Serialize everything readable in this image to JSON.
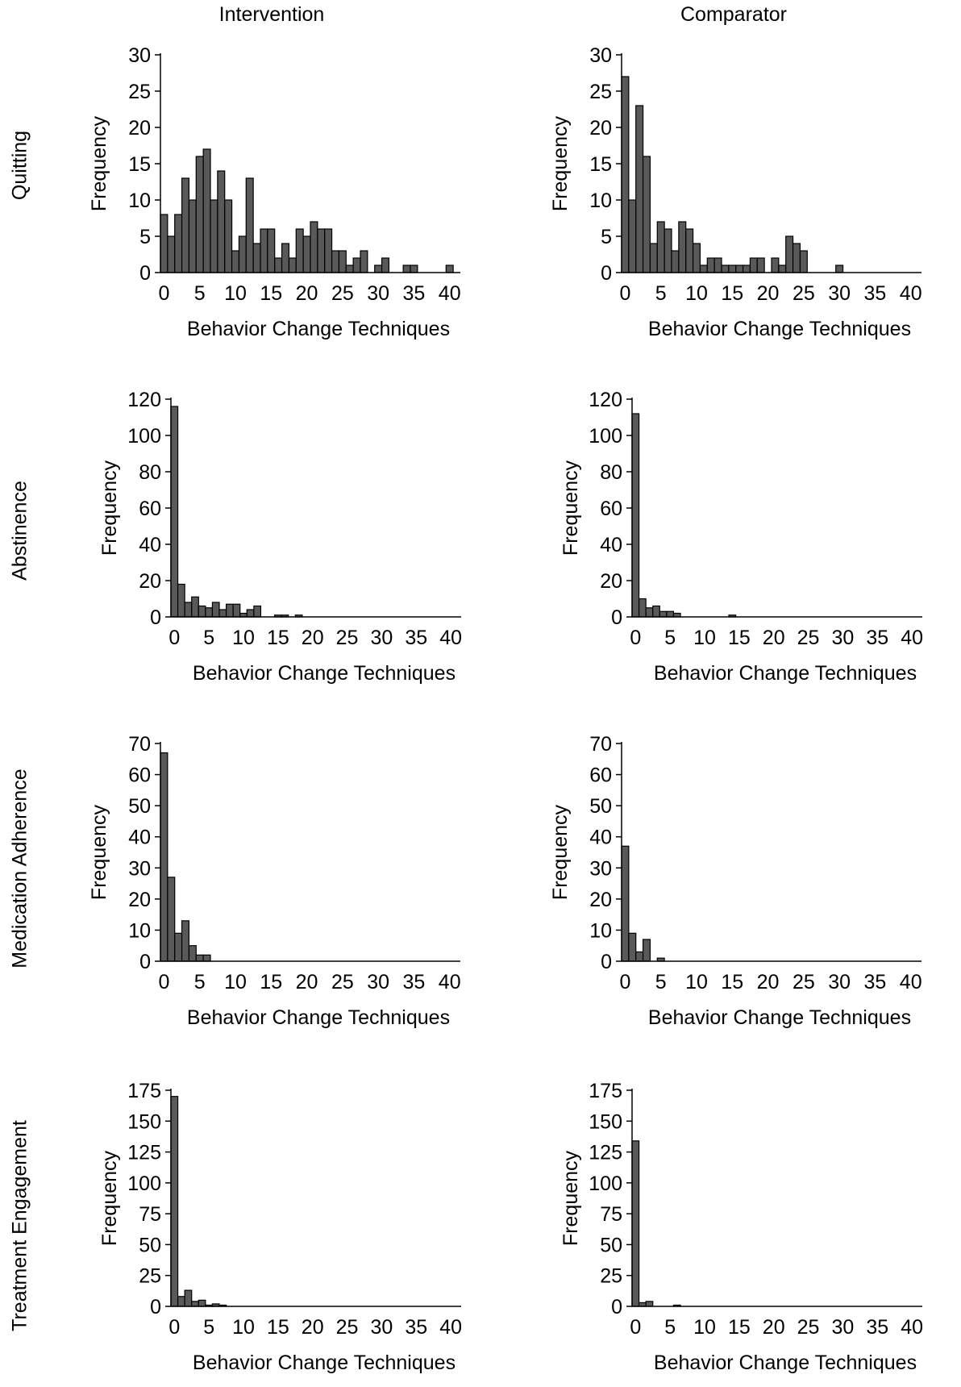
{
  "column_headers": [
    "Intervention",
    "Comparator"
  ],
  "row_labels": [
    "Quitting",
    "Abstinence",
    "Medication Adherence",
    "Treatment Engagement"
  ],
  "colors": {
    "bar_fill": "#595959",
    "bar_stroke": "#000000",
    "axis": "#000000"
  },
  "chart_data": [
    {
      "type": "bar",
      "row": "Quitting",
      "column": "Intervention",
      "xlabel": "Behavior Change Techniques",
      "ylabel": "Frequency",
      "ylim": [
        0,
        30
      ],
      "yticks": [
        0,
        5,
        10,
        15,
        20,
        25,
        30
      ],
      "xlim": [
        0,
        41
      ],
      "xticks": [
        0,
        5,
        10,
        15,
        20,
        25,
        30,
        35,
        40
      ],
      "x": [
        0,
        1,
        2,
        3,
        4,
        5,
        6,
        7,
        8,
        9,
        10,
        11,
        12,
        13,
        14,
        15,
        16,
        17,
        18,
        19,
        20,
        21,
        22,
        23,
        24,
        25,
        26,
        27,
        28,
        29,
        30,
        31,
        32,
        33,
        34,
        35,
        36,
        37,
        38,
        39,
        40,
        41
      ],
      "values": [
        8,
        5,
        8,
        13,
        10,
        16,
        17,
        10,
        14,
        10,
        3,
        5,
        13,
        4,
        6,
        6,
        2,
        4,
        2,
        6,
        5,
        7,
        6,
        6,
        3,
        3,
        1,
        2,
        3,
        0,
        1,
        2,
        0,
        0,
        1,
        1,
        0,
        0,
        0,
        0,
        1,
        0
      ]
    },
    {
      "type": "bar",
      "row": "Quitting",
      "column": "Comparator",
      "xlabel": "Behavior Change Techniques",
      "ylabel": "Frequency",
      "ylim": [
        0,
        30
      ],
      "yticks": [
        0,
        5,
        10,
        15,
        20,
        25,
        30
      ],
      "xlim": [
        0,
        41
      ],
      "xticks": [
        0,
        5,
        10,
        15,
        20,
        25,
        30,
        35,
        40
      ],
      "x": [
        0,
        1,
        2,
        3,
        4,
        5,
        6,
        7,
        8,
        9,
        10,
        11,
        12,
        13,
        14,
        15,
        16,
        17,
        18,
        19,
        20,
        21,
        22,
        23,
        24,
        25,
        26,
        27,
        28,
        29,
        30,
        31,
        32,
        33,
        34,
        35,
        36,
        37,
        38,
        39,
        40,
        41
      ],
      "values": [
        27,
        10,
        23,
        16,
        4,
        7,
        6,
        3,
        7,
        6,
        4,
        1,
        2,
        2,
        1,
        1,
        1,
        1,
        2,
        2,
        0,
        2,
        1,
        5,
        4,
        3,
        0,
        0,
        0,
        0,
        1,
        0,
        0,
        0,
        0,
        0,
        0,
        0,
        0,
        0,
        0,
        0
      ]
    },
    {
      "type": "bar",
      "row": "Abstinence",
      "column": "Intervention",
      "xlabel": "Behavior Change Techniques",
      "ylabel": "Frequency",
      "ylim": [
        0,
        120
      ],
      "yticks": [
        0,
        20,
        40,
        60,
        80,
        100,
        120
      ],
      "xlim": [
        0,
        41
      ],
      "xticks": [
        0,
        5,
        10,
        15,
        20,
        25,
        30,
        35,
        40
      ],
      "x": [
        0,
        1,
        2,
        3,
        4,
        5,
        6,
        7,
        8,
        9,
        10,
        11,
        12,
        13,
        14,
        15,
        16,
        17,
        18,
        19,
        20,
        21,
        22,
        23,
        24,
        25,
        26,
        27,
        28,
        29,
        30,
        31,
        32,
        33,
        34,
        35,
        36,
        37,
        38,
        39,
        40,
        41
      ],
      "values": [
        116,
        18,
        8,
        11,
        6,
        5,
        8,
        4,
        7,
        7,
        2,
        4,
        6,
        0,
        0,
        1,
        1,
        0,
        1,
        0,
        0,
        0,
        0,
        0,
        0,
        0,
        0,
        0,
        0,
        0,
        0,
        0,
        0,
        0,
        0,
        0,
        0,
        0,
        0,
        0,
        0,
        0
      ]
    },
    {
      "type": "bar",
      "row": "Abstinence",
      "column": "Comparator",
      "xlabel": "Behavior Change Techniques",
      "ylabel": "Frequency",
      "ylim": [
        0,
        120
      ],
      "yticks": [
        0,
        20,
        40,
        60,
        80,
        100,
        120
      ],
      "xlim": [
        0,
        41
      ],
      "xticks": [
        0,
        5,
        10,
        15,
        20,
        25,
        30,
        35,
        40
      ],
      "x": [
        0,
        1,
        2,
        3,
        4,
        5,
        6,
        7,
        8,
        9,
        10,
        11,
        12,
        13,
        14,
        15,
        16,
        17,
        18,
        19,
        20,
        21,
        22,
        23,
        24,
        25,
        26,
        27,
        28,
        29,
        30,
        31,
        32,
        33,
        34,
        35,
        36,
        37,
        38,
        39,
        40,
        41
      ],
      "values": [
        112,
        10,
        5,
        6,
        3,
        3,
        2,
        0,
        0,
        0,
        0,
        0,
        0,
        0,
        1,
        0,
        0,
        0,
        0,
        0,
        0,
        0,
        0,
        0,
        0,
        0,
        0,
        0,
        0,
        0,
        0,
        0,
        0,
        0,
        0,
        0,
        0,
        0,
        0,
        0,
        0,
        0
      ]
    },
    {
      "type": "bar",
      "row": "Medication Adherence",
      "column": "Intervention",
      "xlabel": "Behavior Change Techniques",
      "ylabel": "Frequency",
      "ylim": [
        0,
        70
      ],
      "yticks": [
        0,
        10,
        20,
        30,
        40,
        50,
        60,
        70
      ],
      "xlim": [
        0,
        41
      ],
      "xticks": [
        0,
        5,
        10,
        15,
        20,
        25,
        30,
        35,
        40
      ],
      "x": [
        0,
        1,
        2,
        3,
        4,
        5,
        6,
        7,
        8,
        9,
        10,
        11,
        12,
        13,
        14,
        15,
        16,
        17,
        18,
        19,
        20,
        21,
        22,
        23,
        24,
        25,
        26,
        27,
        28,
        29,
        30,
        31,
        32,
        33,
        34,
        35,
        36,
        37,
        38,
        39,
        40,
        41
      ],
      "values": [
        67,
        27,
        9,
        13,
        5,
        2,
        2,
        0,
        0,
        0,
        0,
        0,
        0,
        0,
        0,
        0,
        0,
        0,
        0,
        0,
        0,
        0,
        0,
        0,
        0,
        0,
        0,
        0,
        0,
        0,
        0,
        0,
        0,
        0,
        0,
        0,
        0,
        0,
        0,
        0,
        0,
        0
      ]
    },
    {
      "type": "bar",
      "row": "Medication Adherence",
      "column": "Comparator",
      "xlabel": "Behavior Change Techniques",
      "ylabel": "Frequency",
      "ylim": [
        0,
        70
      ],
      "yticks": [
        0,
        10,
        20,
        30,
        40,
        50,
        60,
        70
      ],
      "xlim": [
        0,
        41
      ],
      "xticks": [
        0,
        5,
        10,
        15,
        20,
        25,
        30,
        35,
        40
      ],
      "x": [
        0,
        1,
        2,
        3,
        4,
        5,
        6,
        7,
        8,
        9,
        10,
        11,
        12,
        13,
        14,
        15,
        16,
        17,
        18,
        19,
        20,
        21,
        22,
        23,
        24,
        25,
        26,
        27,
        28,
        29,
        30,
        31,
        32,
        33,
        34,
        35,
        36,
        37,
        38,
        39,
        40,
        41
      ],
      "values": [
        37,
        9,
        3,
        7,
        0,
        1,
        0,
        0,
        0,
        0,
        0,
        0,
        0,
        0,
        0,
        0,
        0,
        0,
        0,
        0,
        0,
        0,
        0,
        0,
        0,
        0,
        0,
        0,
        0,
        0,
        0,
        0,
        0,
        0,
        0,
        0,
        0,
        0,
        0,
        0,
        0,
        0
      ]
    },
    {
      "type": "bar",
      "row": "Treatment Engagement",
      "column": "Intervention",
      "xlabel": "Behavior Change Techniques",
      "ylabel": "Frequency",
      "ylim": [
        0,
        175
      ],
      "yticks": [
        0,
        25,
        50,
        75,
        100,
        125,
        150,
        175
      ],
      "xlim": [
        0,
        41
      ],
      "xticks": [
        0,
        5,
        10,
        15,
        20,
        25,
        30,
        35,
        40
      ],
      "x": [
        0,
        1,
        2,
        3,
        4,
        5,
        6,
        7,
        8,
        9,
        10,
        11,
        12,
        13,
        14,
        15,
        16,
        17,
        18,
        19,
        20,
        21,
        22,
        23,
        24,
        25,
        26,
        27,
        28,
        29,
        30,
        31,
        32,
        33,
        34,
        35,
        36,
        37,
        38,
        39,
        40,
        41
      ],
      "values": [
        170,
        8,
        13,
        4,
        5,
        1,
        2,
        1,
        0,
        0,
        0,
        0,
        0,
        0,
        0,
        0,
        0,
        0,
        0,
        0,
        0,
        0,
        0,
        0,
        0,
        0,
        0,
        0,
        0,
        0,
        0,
        0,
        0,
        0,
        0,
        0,
        0,
        0,
        0,
        0,
        0,
        0
      ]
    },
    {
      "type": "bar",
      "row": "Treatment Engagement",
      "column": "Comparator",
      "xlabel": "Behavior Change Techniques",
      "ylabel": "Frequency",
      "ylim": [
        0,
        175
      ],
      "yticks": [
        0,
        25,
        50,
        75,
        100,
        125,
        150,
        175
      ],
      "xlim": [
        0,
        41
      ],
      "xticks": [
        0,
        5,
        10,
        15,
        20,
        25,
        30,
        35,
        40
      ],
      "x": [
        0,
        1,
        2,
        3,
        4,
        5,
        6,
        7,
        8,
        9,
        10,
        11,
        12,
        13,
        14,
        15,
        16,
        17,
        18,
        19,
        20,
        21,
        22,
        23,
        24,
        25,
        26,
        27,
        28,
        29,
        30,
        31,
        32,
        33,
        34,
        35,
        36,
        37,
        38,
        39,
        40,
        41
      ],
      "values": [
        134,
        3,
        4,
        0,
        0,
        0,
        1,
        0,
        0,
        0,
        0,
        0,
        0,
        0,
        0,
        0,
        0,
        0,
        0,
        0,
        0,
        0,
        0,
        0,
        0,
        0,
        0,
        0,
        0,
        0,
        0,
        0,
        0,
        0,
        0,
        0,
        0,
        0,
        0,
        0,
        0,
        0
      ]
    }
  ]
}
